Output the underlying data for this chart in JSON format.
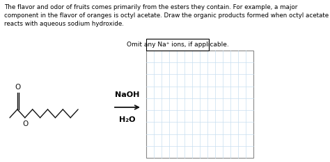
{
  "title_text": "The flavor and odor of fruits comes primarily from the esters they contain. For example, a major\ncomponent in the flavor of oranges is octyl acetate. Draw the organic products formed when octyl acetate\nreacts with aqueous sodium hydroxide.",
  "label_above_arrow": "NaOH",
  "label_below_arrow": "H₂O",
  "omit_label": "Omit any Na⁺ ions, if applicable.",
  "background_color": "#ffffff",
  "grid_color": "#c8dff0",
  "grid_box_color": "#888888",
  "omit_box_color": "#000000",
  "text_color": "#000000",
  "molecule_color": "#111111",
  "arrow_color": "#111111",
  "title_fontsize": 6.3,
  "arrow_label_fontsize": 8.0,
  "omit_fontsize": 6.5,
  "grid_cols": 14,
  "grid_rows": 9
}
